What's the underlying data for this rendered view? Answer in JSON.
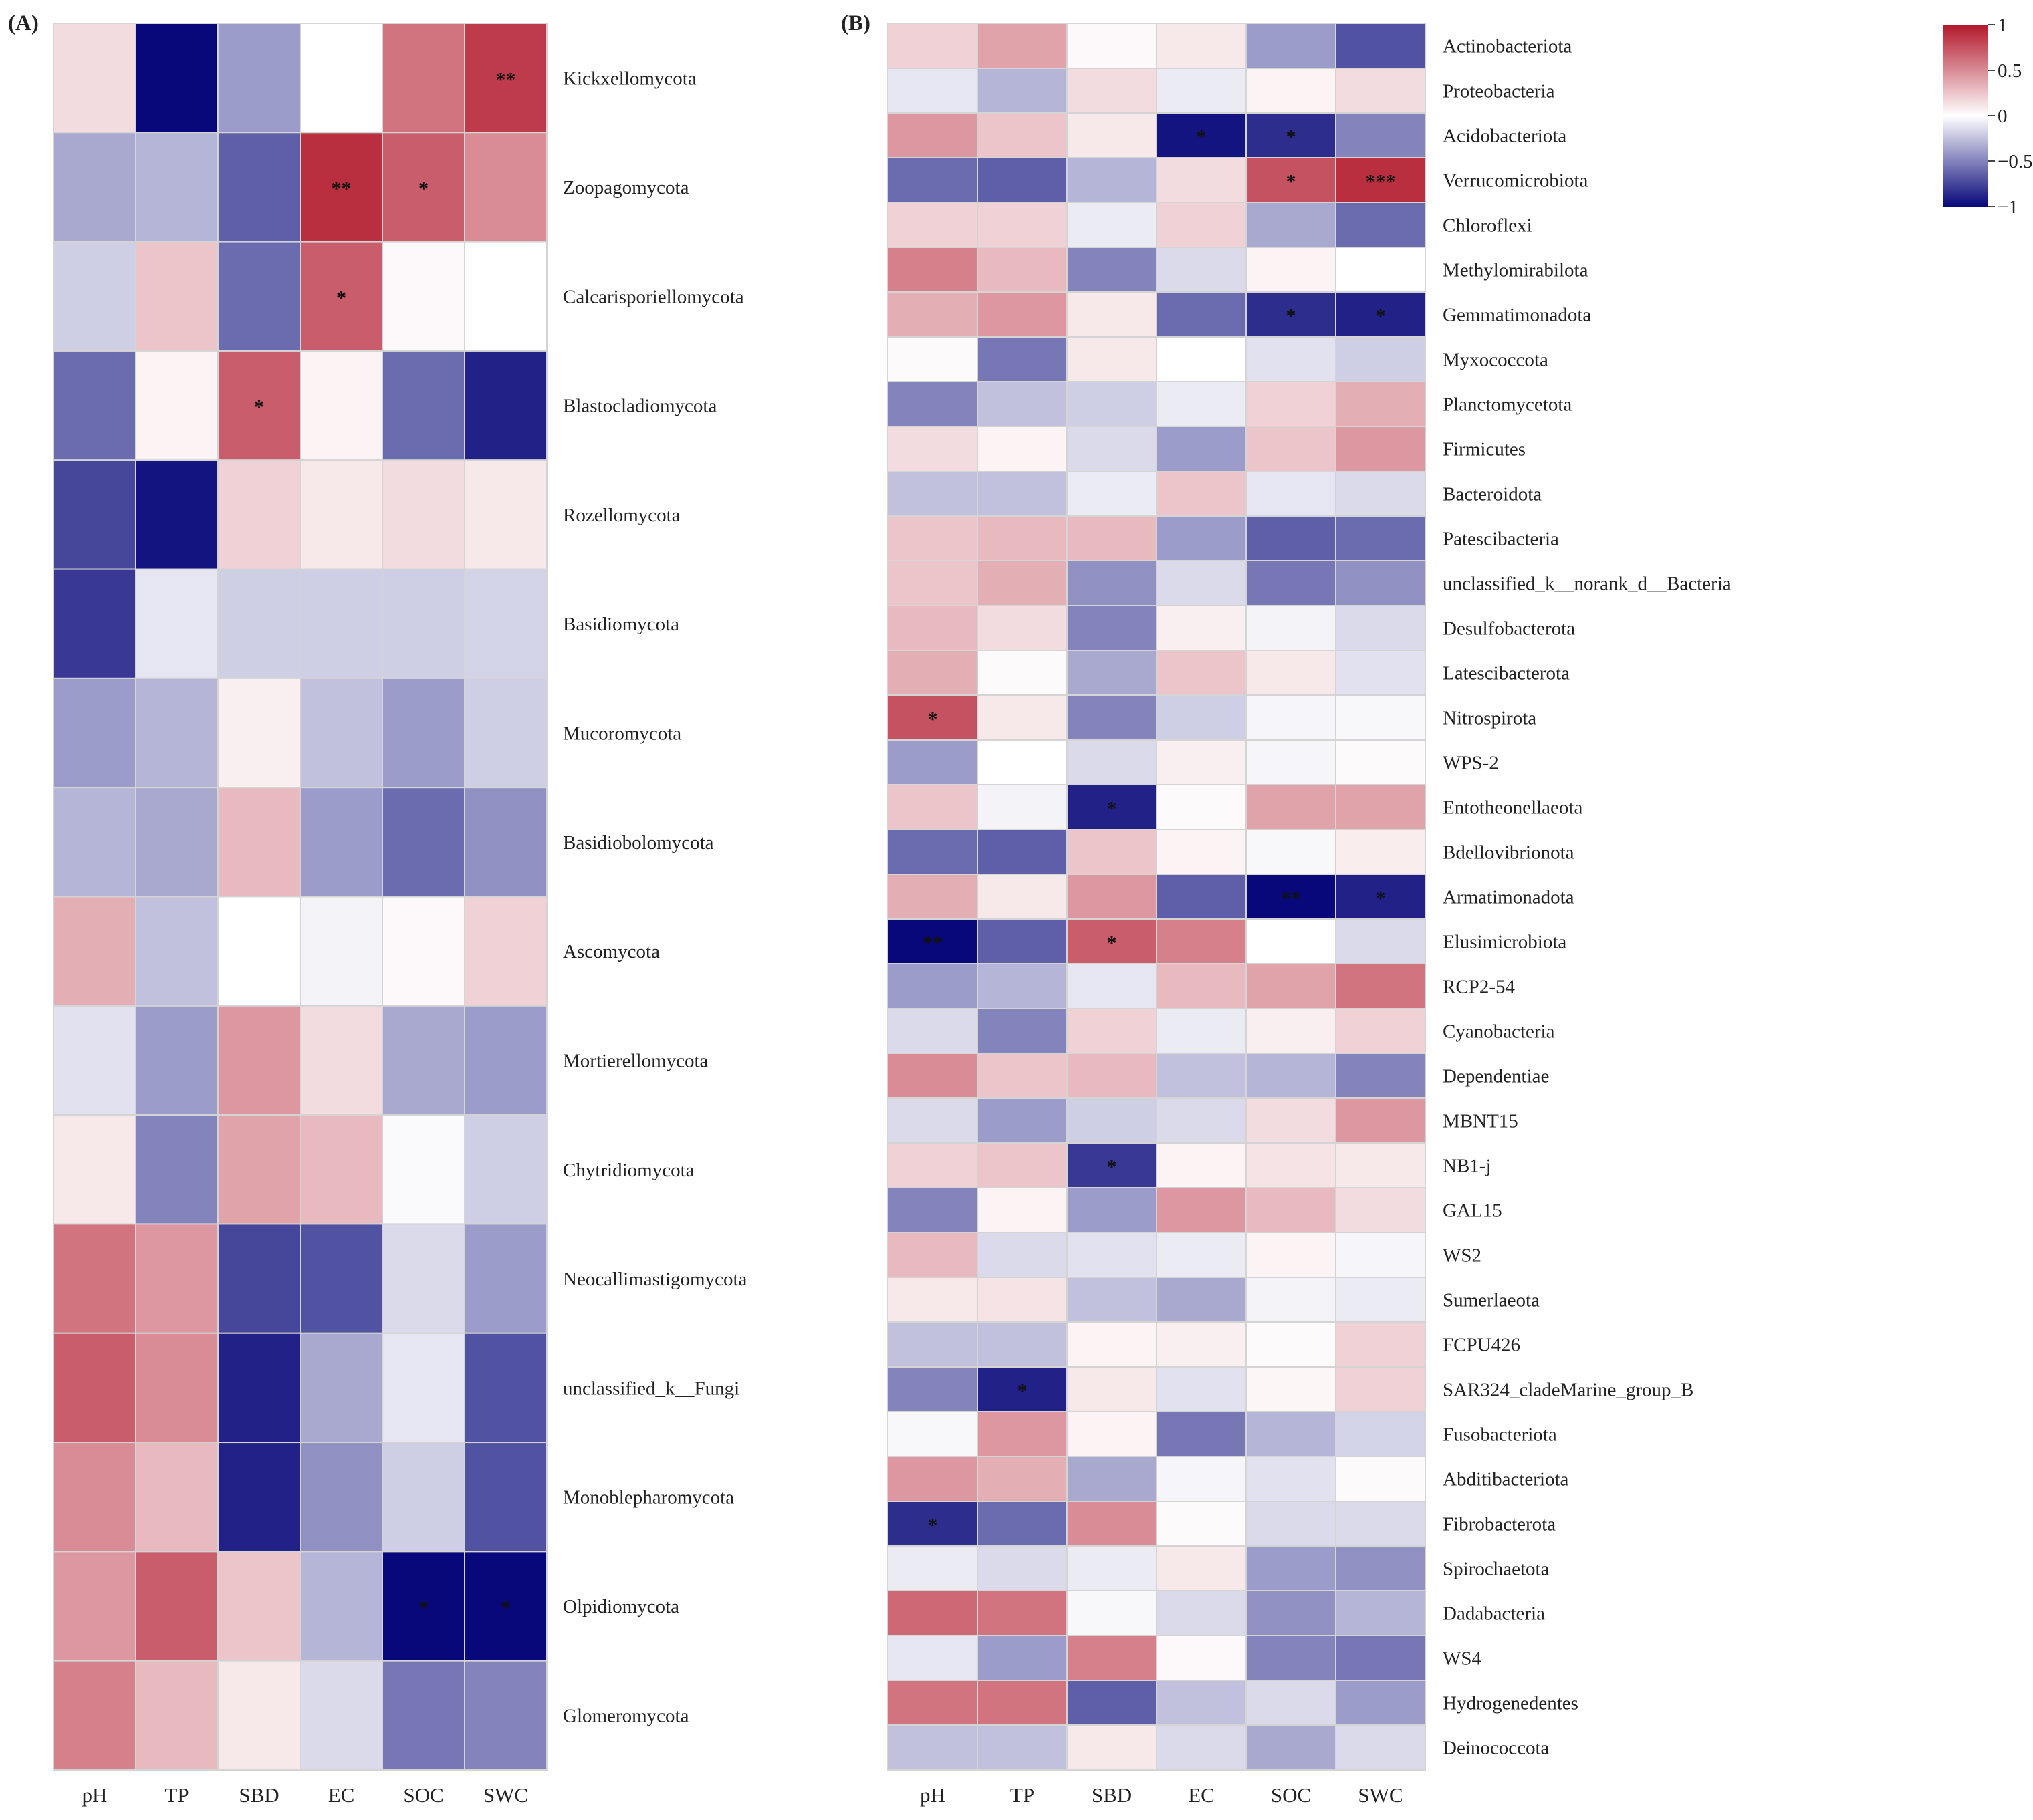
{
  "chart_data": [
    {
      "type": "heatmap",
      "panel": "(A)",
      "columns": [
        "pH",
        "TP",
        "SBD",
        "EC",
        "SOC",
        "SWC"
      ],
      "rows": [
        {
          "name": "Kickxellomycota",
          "values": [
            0.15,
            -1.0,
            -0.4,
            0.0,
            0.6,
            0.85
          ],
          "stars": [
            "",
            "",
            "",
            "",
            "",
            "**"
          ]
        },
        {
          "name": "Zoopagomycota",
          "values": [
            -0.35,
            -0.3,
            -0.65,
            0.9,
            0.7,
            0.5
          ],
          "stars": [
            "",
            "",
            "",
            "**",
            "*",
            ""
          ]
        },
        {
          "name": "Calcarisporiellomycota",
          "values": [
            -0.2,
            0.25,
            -0.6,
            0.7,
            0.03,
            0.0
          ],
          "stars": [
            "",
            "",
            "",
            "*",
            "",
            ""
          ]
        },
        {
          "name": "Blastocladiomycota",
          "values": [
            -0.6,
            0.05,
            0.7,
            0.05,
            -0.6,
            -0.9
          ],
          "stars": [
            "",
            "",
            "*",
            "",
            "",
            ""
          ]
        },
        {
          "name": "Rozellomycota",
          "values": [
            -0.75,
            -0.95,
            0.2,
            0.1,
            0.15,
            0.1
          ],
          "stars": [
            "",
            "",
            "",
            "",
            "",
            ""
          ]
        },
        {
          "name": "Basidiomycota",
          "values": [
            -0.8,
            -0.1,
            -0.2,
            -0.2,
            -0.2,
            -0.18
          ],
          "stars": [
            "",
            "",
            "",
            "",
            "",
            ""
          ]
        },
        {
          "name": "Mucoromycota",
          "values": [
            -0.4,
            -0.3,
            0.07,
            -0.25,
            -0.4,
            -0.2
          ],
          "stars": [
            "",
            "",
            "",
            "",
            "",
            ""
          ]
        },
        {
          "name": "Basidiobolomycota",
          "values": [
            -0.3,
            -0.35,
            0.3,
            -0.4,
            -0.6,
            -0.45
          ],
          "stars": [
            "",
            "",
            "",
            "",
            "",
            ""
          ]
        },
        {
          "name": "Ascomycota",
          "values": [
            0.35,
            -0.25,
            0.0,
            -0.05,
            0.03,
            0.2
          ],
          "stars": [
            "",
            "",
            "",
            "",
            "",
            ""
          ]
        },
        {
          "name": "Mortierellomycota",
          "values": [
            -0.12,
            -0.4,
            0.45,
            0.15,
            -0.35,
            -0.4
          ],
          "stars": [
            "",
            "",
            "",
            "",
            "",
            ""
          ]
        },
        {
          "name": "Chytridiomycota",
          "values": [
            0.1,
            -0.5,
            0.4,
            0.3,
            -0.02,
            -0.2
          ],
          "stars": [
            "",
            "",
            "",
            "",
            "",
            ""
          ]
        },
        {
          "name": "Neocallimastigomycota",
          "values": [
            0.6,
            0.45,
            -0.75,
            -0.7,
            -0.15,
            -0.4
          ],
          "stars": [
            "",
            "",
            "",
            "",
            "",
            ""
          ]
        },
        {
          "name": "unclassified_k__Fungi",
          "values": [
            0.7,
            0.5,
            -0.9,
            -0.35,
            -0.1,
            -0.7
          ],
          "stars": [
            "",
            "",
            "",
            "",
            "",
            ""
          ]
        },
        {
          "name": "Monoblepharomycota",
          "values": [
            0.5,
            0.3,
            -0.9,
            -0.45,
            -0.2,
            -0.7
          ],
          "stars": [
            "",
            "",
            "",
            "",
            "",
            ""
          ]
        },
        {
          "name": "Olpidiomycota",
          "values": [
            0.45,
            0.7,
            0.25,
            -0.3,
            -1.0,
            -1.0
          ],
          "stars": [
            "",
            "",
            "",
            "",
            "*",
            "*"
          ]
        },
        {
          "name": "Glomeromycota",
          "values": [
            0.55,
            0.3,
            0.1,
            -0.15,
            -0.55,
            -0.5
          ],
          "stars": [
            "",
            "",
            "",
            "",
            "",
            ""
          ]
        }
      ]
    },
    {
      "type": "heatmap",
      "panel": "(B)",
      "columns": [
        "pH",
        "TP",
        "SBD",
        "EC",
        "SOC",
        "SWC"
      ],
      "rows": [
        {
          "name": "Actinobacteriota",
          "values": [
            0.2,
            0.4,
            0.03,
            0.1,
            -0.4,
            -0.7
          ],
          "stars": [
            "",
            "",
            "",
            "",
            "",
            ""
          ]
        },
        {
          "name": "Proteobacteria",
          "values": [
            -0.1,
            -0.3,
            0.15,
            -0.08,
            0.05,
            0.15
          ],
          "stars": [
            "",
            "",
            "",
            "",
            "",
            ""
          ]
        },
        {
          "name": "Acidobacteriota",
          "values": [
            0.45,
            0.25,
            0.1,
            -0.95,
            -0.85,
            -0.5
          ],
          "stars": [
            "",
            "",
            "",
            "*",
            "*",
            ""
          ]
        },
        {
          "name": "Verrucomicrobiota",
          "values": [
            -0.6,
            -0.65,
            -0.3,
            0.15,
            0.75,
            0.9
          ],
          "stars": [
            "",
            "",
            "",
            "",
            "*",
            "***"
          ]
        },
        {
          "name": "Chloroflexi",
          "values": [
            0.2,
            0.2,
            -0.08,
            0.2,
            -0.35,
            -0.6
          ],
          "stars": [
            "",
            "",
            "",
            "",
            "",
            ""
          ]
        },
        {
          "name": "Methylomirabilota",
          "values": [
            0.55,
            0.3,
            -0.5,
            -0.15,
            0.05,
            0.0
          ],
          "stars": [
            "",
            "",
            "",
            "",
            "",
            ""
          ]
        },
        {
          "name": "Gemmatimonadota",
          "values": [
            0.35,
            0.45,
            0.1,
            -0.6,
            -0.85,
            -0.9
          ],
          "stars": [
            "",
            "",
            "",
            "",
            "*",
            "*"
          ]
        },
        {
          "name": "Myxococcota",
          "values": [
            0.02,
            -0.55,
            0.1,
            0.0,
            -0.12,
            -0.2
          ],
          "stars": [
            "",
            "",
            "",
            "",
            "",
            ""
          ]
        },
        {
          "name": "Planctomycetota",
          "values": [
            -0.5,
            -0.25,
            -0.2,
            -0.08,
            0.2,
            0.35
          ],
          "stars": [
            "",
            "",
            "",
            "",
            "",
            ""
          ]
        },
        {
          "name": "Firmicutes",
          "values": [
            0.15,
            0.05,
            -0.15,
            -0.4,
            0.25,
            0.45
          ],
          "stars": [
            "",
            "",
            "",
            "",
            "",
            ""
          ]
        },
        {
          "name": "Bacteroidota",
          "values": [
            -0.25,
            -0.25,
            -0.08,
            0.25,
            -0.1,
            -0.15
          ],
          "stars": [
            "",
            "",
            "",
            "",
            "",
            ""
          ]
        },
        {
          "name": "Patescibacteria",
          "values": [
            0.25,
            0.3,
            0.3,
            -0.4,
            -0.65,
            -0.6
          ],
          "stars": [
            "",
            "",
            "",
            "",
            "",
            ""
          ]
        },
        {
          "name": "unclassified_k__norank_d__Bacteria",
          "values": [
            0.25,
            0.35,
            -0.45,
            -0.15,
            -0.55,
            -0.45
          ],
          "stars": [
            "",
            "",
            "",
            "",
            "",
            ""
          ]
        },
        {
          "name": "Desulfobacterota",
          "values": [
            0.3,
            0.15,
            -0.5,
            0.07,
            -0.05,
            -0.15
          ],
          "stars": [
            "",
            "",
            "",
            "",
            "",
            ""
          ]
        },
        {
          "name": "Latescibacterota",
          "values": [
            0.35,
            0.02,
            -0.35,
            0.25,
            0.1,
            -0.12
          ],
          "stars": [
            "",
            "",
            "",
            "",
            "",
            ""
          ]
        },
        {
          "name": "Nitrospirota",
          "values": [
            0.75,
            0.1,
            -0.5,
            -0.2,
            -0.04,
            -0.03
          ],
          "stars": [
            "*",
            "",
            "",
            "",
            "",
            ""
          ]
        },
        {
          "name": "WPS-2",
          "values": [
            -0.4,
            0.0,
            -0.15,
            0.07,
            -0.04,
            0.02
          ],
          "stars": [
            "",
            "",
            "",
            "",
            "",
            ""
          ]
        },
        {
          "name": "Entotheonellaeota",
          "values": [
            0.25,
            -0.05,
            -0.9,
            0.02,
            0.4,
            0.4
          ],
          "stars": [
            "",
            "",
            "*",
            "",
            "",
            ""
          ]
        },
        {
          "name": "Bdellovibrionota",
          "values": [
            -0.6,
            -0.65,
            0.25,
            0.05,
            -0.03,
            0.08
          ],
          "stars": [
            "",
            "",
            "",
            "",
            "",
            ""
          ]
        },
        {
          "name": "Armatimonadota",
          "values": [
            0.35,
            0.1,
            0.45,
            -0.65,
            -1.0,
            -0.9
          ],
          "stars": [
            "",
            "",
            "",
            "",
            "**",
            "*"
          ]
        },
        {
          "name": "Elusimicrobiota",
          "values": [
            -1.0,
            -0.65,
            0.7,
            0.55,
            0.0,
            -0.15
          ],
          "stars": [
            "**",
            "",
            "*",
            "",
            "",
            ""
          ]
        },
        {
          "name": "RCP2-54",
          "values": [
            -0.4,
            -0.3,
            -0.1,
            0.3,
            0.4,
            0.6
          ],
          "stars": [
            "",
            "",
            "",
            "",
            "",
            ""
          ]
        },
        {
          "name": "Cyanobacteria",
          "values": [
            -0.15,
            -0.5,
            0.2,
            -0.08,
            0.07,
            0.2
          ],
          "stars": [
            "",
            "",
            "",
            "",
            "",
            ""
          ]
        },
        {
          "name": "Dependentiae",
          "values": [
            0.5,
            0.25,
            0.3,
            -0.25,
            -0.3,
            -0.5
          ],
          "stars": [
            "",
            "",
            "",
            "",
            "",
            ""
          ]
        },
        {
          "name": "MBNT15",
          "values": [
            -0.15,
            -0.4,
            -0.2,
            -0.15,
            0.15,
            0.45
          ],
          "stars": [
            "",
            "",
            "",
            "",
            "",
            ""
          ]
        },
        {
          "name": "NB1-j",
          "values": [
            0.2,
            0.25,
            -0.8,
            0.05,
            0.12,
            0.1
          ],
          "stars": [
            "",
            "",
            "*",
            "",
            "",
            ""
          ]
        },
        {
          "name": "GAL15",
          "values": [
            -0.5,
            0.05,
            -0.4,
            0.45,
            0.3,
            0.15
          ],
          "stars": [
            "",
            "",
            "",
            "",
            "",
            ""
          ]
        },
        {
          "name": "WS2",
          "values": [
            0.3,
            -0.15,
            -0.12,
            -0.08,
            0.05,
            -0.04
          ],
          "stars": [
            "",
            "",
            "",
            "",
            "",
            ""
          ]
        },
        {
          "name": "Sumerlaeota",
          "values": [
            0.1,
            0.12,
            -0.25,
            -0.35,
            -0.05,
            -0.08
          ],
          "stars": [
            "",
            "",
            "",
            "",
            "",
            ""
          ]
        },
        {
          "name": "FCPU426",
          "values": [
            -0.25,
            -0.25,
            0.05,
            0.07,
            0.02,
            0.2
          ],
          "stars": [
            "",
            "",
            "",
            "",
            "",
            ""
          ]
        },
        {
          "name": "SAR324_cladeMarine_group_B",
          "values": [
            -0.5,
            -0.9,
            0.1,
            -0.12,
            0.04,
            0.2
          ],
          "stars": [
            "",
            "*",
            "",
            "",
            "",
            ""
          ]
        },
        {
          "name": "Fusobacteriota",
          "values": [
            -0.03,
            0.45,
            0.05,
            -0.55,
            -0.3,
            -0.18
          ],
          "stars": [
            "",
            "",
            "",
            "",
            "",
            ""
          ]
        },
        {
          "name": "Abditibacteriota",
          "values": [
            0.45,
            0.35,
            -0.35,
            -0.04,
            -0.12,
            0.02
          ],
          "stars": [
            "",
            "",
            "",
            "",
            "",
            ""
          ]
        },
        {
          "name": "Fibrobacterota",
          "values": [
            -0.85,
            -0.6,
            0.5,
            0.02,
            -0.15,
            -0.15
          ],
          "stars": [
            "*",
            "",
            "",
            "",
            "",
            ""
          ]
        },
        {
          "name": "Spirochaetota",
          "values": [
            -0.08,
            -0.15,
            -0.08,
            0.1,
            -0.4,
            -0.45
          ],
          "stars": [
            "",
            "",
            "",
            "",
            "",
            ""
          ]
        },
        {
          "name": "Dadabacteria",
          "values": [
            0.65,
            0.6,
            -0.03,
            -0.15,
            -0.45,
            -0.3
          ],
          "stars": [
            "",
            "",
            "",
            "",
            "",
            ""
          ]
        },
        {
          "name": "WS4",
          "values": [
            -0.1,
            -0.4,
            0.55,
            0.03,
            -0.5,
            -0.55
          ],
          "stars": [
            "",
            "",
            "",
            "",
            "",
            ""
          ]
        },
        {
          "name": "Hydrogenedentes",
          "values": [
            0.6,
            0.6,
            -0.65,
            -0.25,
            -0.15,
            -0.4
          ],
          "stars": [
            "",
            "",
            "",
            "",
            "",
            ""
          ]
        },
        {
          "name": "Deinococcota",
          "values": [
            -0.25,
            -0.25,
            0.1,
            -0.15,
            -0.35,
            -0.15
          ],
          "stars": [
            "",
            "",
            "",
            "",
            "",
            ""
          ]
        }
      ]
    }
  ],
  "colorbar": {
    "ticks": [
      "1",
      "0.5",
      "0",
      "−0.5",
      "−1"
    ],
    "tick_values": [
      1,
      0.5,
      0,
      -0.5,
      -1
    ],
    "range": [
      -1,
      1
    ],
    "colors": {
      "negative": "#08087a",
      "neutral": "#ffffff",
      "positive": "#b2182b"
    }
  }
}
